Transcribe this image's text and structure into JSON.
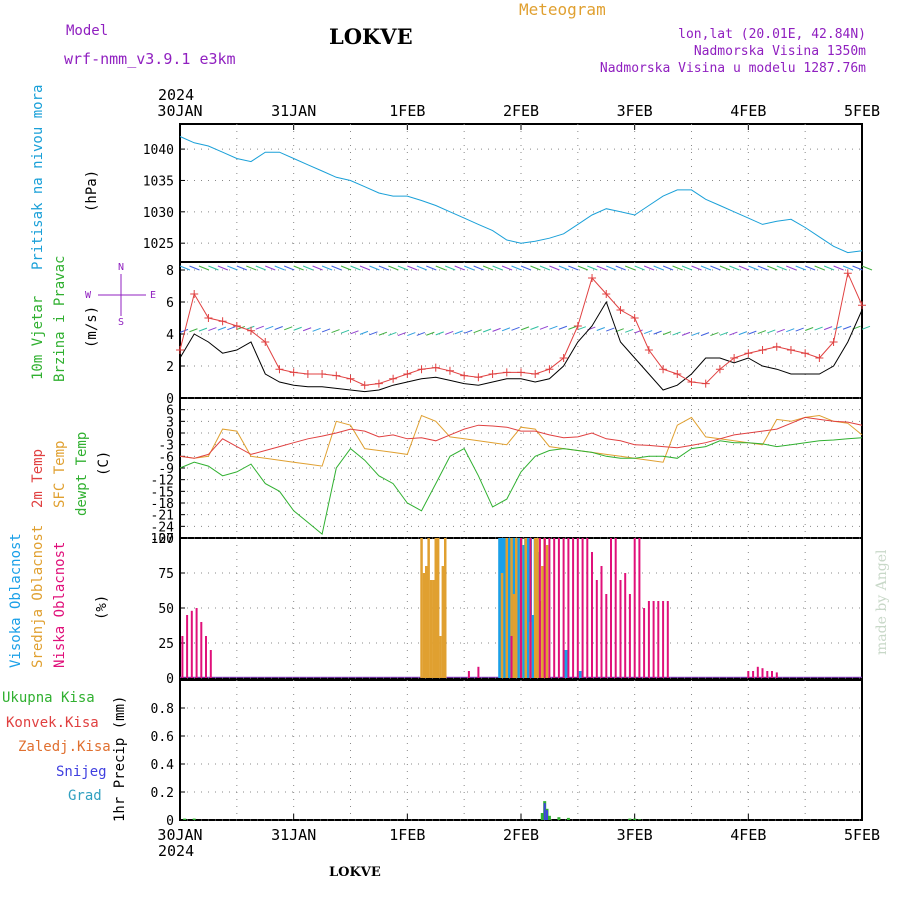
{
  "header": {
    "model_label": "Model",
    "model_name": "wrf-nmm_v3.9.1  e3km",
    "station": "LOKVE",
    "title": "Meteogram",
    "coords": "lon,lat (20.01E, 42.84N)",
    "elevation": "Nadmorska Visina 1350m",
    "model_elevation": "Nadmorska Visina u modelu 1287.76m"
  },
  "footer": {
    "station": "LOKVE",
    "credit": "made by Angel"
  },
  "time_axis": {
    "year": "2024",
    "ticks": [
      "30JAN",
      "31JAN",
      "1FEB",
      "2FEB",
      "3FEB",
      "4FEB",
      "5FEB"
    ],
    "range_hours": [
      0,
      144
    ]
  },
  "colors": {
    "pressure": "#1aa0d8",
    "wind_speed": "#e04040",
    "wind_gust": "#000000",
    "temp_2m": "#e04040",
    "temp_sfc": "#e0a030",
    "temp_dew": "#30b030",
    "cloud_high": "#1aa0e8",
    "cloud_mid": "#e0a030",
    "cloud_low": "#e0107a",
    "precip_total": "#30b030",
    "precip_conv": "#e04040",
    "precip_snow": "#4040e0",
    "legend_purple": "#9020c0"
  },
  "panels": {
    "pressure": {
      "label": "Pritisak na nivou mora",
      "unit": "(hPa)",
      "yticks": [
        "1040",
        "1035",
        "1030",
        "1025"
      ]
    },
    "wind": {
      "label1": "10m Vjetar",
      "label2": "Brzina i Pravac",
      "unit": "(m/s)",
      "yticks": [
        "8",
        "6",
        "4",
        "2",
        "0"
      ],
      "compass": {
        "n": "N",
        "w": "W",
        "e": "E",
        "s": "S"
      }
    },
    "temp": {
      "label1": "2m Temp",
      "label2": "SFC Temp",
      "label3": "dewpt Temp",
      "unit": "(C)",
      "yticks": [
        "6",
        "3",
        "0",
        "-3",
        "-6",
        "-9",
        "-12",
        "-15",
        "-18",
        "-21",
        "-24",
        "-27"
      ]
    },
    "cloud": {
      "label_high": "Visoka Oblacnost",
      "label_mid": "Srednja Oblacnost",
      "label_low": "Niska Oblacnost",
      "unit": "(%)",
      "yticks": [
        "100",
        "75",
        "50",
        "25",
        "0"
      ]
    },
    "precip": {
      "label_total": "Ukupna Kisa",
      "label_conv": "Konvek.Kisa",
      "label_frz": "Zaledj.Kisa",
      "label_snow": "Snijeg",
      "label_grad": "Grad",
      "unit": "1hr Precip (mm)",
      "yticks": [
        "0.8",
        "0.6",
        "0.4",
        "0.2",
        "0"
      ]
    }
  },
  "chart_data": [
    {
      "type": "line",
      "panel": "pressure",
      "ylim": [
        1022,
        1044
      ],
      "series": [
        {
          "name": "Pritisak na nivou mora",
          "x": [
            0,
            3,
            6,
            9,
            12,
            15,
            18,
            21,
            24,
            27,
            30,
            33,
            36,
            39,
            42,
            45,
            48,
            51,
            54,
            57,
            60,
            63,
            66,
            69,
            72,
            75,
            78,
            81,
            84,
            87,
            90,
            93,
            96,
            99,
            102,
            105,
            108,
            111,
            114,
            117,
            120,
            123,
            126,
            129,
            132,
            135,
            138,
            141,
            144
          ],
          "values": [
            1042,
            1041,
            1040.5,
            1039.5,
            1038.5,
            1038,
            1039.5,
            1039.5,
            1038.5,
            1037.5,
            1036.5,
            1035.5,
            1035,
            1034,
            1033,
            1032.5,
            1032.5,
            1031.8,
            1031,
            1030,
            1029,
            1028,
            1027,
            1025.5,
            1025,
            1025.3,
            1025.8,
            1026.5,
            1028,
            1029.5,
            1030.5,
            1030,
            1029.5,
            1031,
            1032.5,
            1033.5,
            1033.5,
            1032,
            1031,
            1030,
            1029,
            1028,
            1028.5,
            1028.8,
            1027.5,
            1026,
            1024.5,
            1023.5,
            1023.8
          ]
        }
      ]
    },
    {
      "type": "line",
      "panel": "wind",
      "ylim": [
        0,
        8.5
      ],
      "series": [
        {
          "name": "Brzina i Pravac",
          "x": [
            0,
            3,
            6,
            9,
            12,
            15,
            18,
            21,
            24,
            27,
            30,
            33,
            36,
            39,
            42,
            45,
            48,
            51,
            54,
            57,
            60,
            63,
            66,
            69,
            72,
            75,
            78,
            81,
            84,
            87,
            90,
            93,
            96,
            99,
            102,
            105,
            108,
            111,
            114,
            117,
            120,
            123,
            126,
            129,
            132,
            135,
            138,
            141,
            144
          ],
          "values": [
            3.0,
            6.5,
            5.0,
            4.8,
            4.5,
            4.2,
            3.5,
            1.8,
            1.6,
            1.5,
            1.5,
            1.4,
            1.2,
            0.8,
            0.9,
            1.2,
            1.5,
            1.8,
            1.9,
            1.7,
            1.4,
            1.3,
            1.5,
            1.6,
            1.6,
            1.5,
            1.8,
            2.5,
            4.5,
            7.5,
            6.5,
            5.5,
            5.0,
            3.0,
            1.8,
            1.5,
            1.0,
            0.9,
            1.8,
            2.5,
            2.8,
            3.0,
            3.2,
            3.0,
            2.8,
            2.5,
            3.5,
            7.8,
            5.8
          ]
        },
        {
          "name": "",
          "x": [
            0,
            3,
            6,
            9,
            12,
            15,
            18,
            21,
            24,
            27,
            30,
            33,
            36,
            39,
            42,
            45,
            48,
            51,
            54,
            57,
            60,
            63,
            66,
            69,
            72,
            75,
            78,
            81,
            84,
            87,
            90,
            93,
            96,
            99,
            102,
            105,
            108,
            111,
            114,
            117,
            120,
            123,
            126,
            129,
            132,
            135,
            138,
            141,
            144
          ],
          "values": [
            2.5,
            4.0,
            3.5,
            2.8,
            3.0,
            3.5,
            1.5,
            1.0,
            0.8,
            0.7,
            0.7,
            0.6,
            0.5,
            0.4,
            0.5,
            0.8,
            1.0,
            1.2,
            1.3,
            1.1,
            0.9,
            0.8,
            1.0,
            1.2,
            1.2,
            1.0,
            1.2,
            2.0,
            3.5,
            4.5,
            6.0,
            3.5,
            2.5,
            1.5,
            0.5,
            0.8,
            1.5,
            2.5,
            2.5,
            2.2,
            2.5,
            2.0,
            1.8,
            1.5,
            1.5,
            1.5,
            2.0,
            3.5,
            5.5
          ]
        }
      ]
    },
    {
      "type": "line",
      "panel": "temp",
      "ylim": [
        -27,
        9
      ],
      "series": [
        {
          "name": "2m Temp",
          "x": [
            0,
            3,
            6,
            9,
            12,
            15,
            18,
            21,
            24,
            27,
            30,
            33,
            36,
            39,
            42,
            45,
            48,
            51,
            54,
            57,
            60,
            63,
            66,
            69,
            72,
            75,
            78,
            81,
            84,
            87,
            90,
            93,
            96,
            99,
            102,
            105,
            108,
            111,
            114,
            117,
            120,
            123,
            126,
            129,
            132,
            135,
            138,
            141,
            144
          ],
          "values": [
            -6,
            -6.5,
            -5.5,
            -1.5,
            -3.5,
            -5.5,
            -4.5,
            -3.5,
            -2.5,
            -1.5,
            -0.8,
            0,
            1,
            0.5,
            -1,
            -0.5,
            -1.5,
            -1.2,
            -2,
            -0.5,
            1,
            2,
            1.8,
            1.5,
            0.5,
            0.5,
            -0.5,
            -1.2,
            -1,
            0,
            -1.5,
            -2,
            -3,
            -3.2,
            -3.5,
            -3.8,
            -3.2,
            -2.5,
            -1.5,
            -0.5,
            0,
            0.5,
            1,
            2.5,
            4,
            3.5,
            3,
            2.8,
            2
          ]
        },
        {
          "name": "SFC Temp",
          "x": [
            0,
            3,
            6,
            9,
            12,
            15,
            18,
            21,
            24,
            27,
            30,
            33,
            36,
            39,
            42,
            45,
            48,
            51,
            54,
            57,
            60,
            63,
            66,
            69,
            72,
            75,
            78,
            81,
            84,
            87,
            90,
            93,
            96,
            99,
            102,
            105,
            108,
            111,
            114,
            117,
            120,
            123,
            126,
            129,
            132,
            135,
            138,
            141,
            144
          ],
          "values": [
            -6,
            -6.5,
            -6,
            1,
            0.5,
            -6,
            -6.5,
            -7,
            -7.5,
            -8,
            -8.5,
            3,
            2,
            -4,
            -4.5,
            -5,
            -5.5,
            4.5,
            3,
            -1,
            -1.5,
            -2,
            -2.5,
            -3,
            1.5,
            1,
            -3.5,
            -4,
            -4.5,
            -5,
            -5.5,
            -6,
            -6.5,
            -7,
            -7.5,
            2,
            4,
            -1,
            -1.5,
            -2,
            -2.5,
            -3,
            3.5,
            3,
            4,
            4.5,
            3,
            2.5,
            -0.5
          ]
        },
        {
          "name": "dewpt Temp",
          "x": [
            0,
            3,
            6,
            9,
            12,
            15,
            18,
            21,
            24,
            27,
            30,
            33,
            36,
            39,
            42,
            45,
            48,
            51,
            54,
            57,
            60,
            63,
            66,
            69,
            72,
            75,
            78,
            81,
            84,
            87,
            90,
            93,
            96,
            99,
            102,
            105,
            108,
            111,
            114,
            117,
            120,
            123,
            126,
            129,
            132,
            135,
            138,
            141,
            144
          ],
          "values": [
            -9,
            -7.5,
            -8.5,
            -11,
            -10,
            -8,
            -13,
            -15,
            -20,
            -23,
            -26,
            -9,
            -4,
            -7,
            -11,
            -13,
            -18,
            -20,
            -13,
            -6,
            -4,
            -11,
            -19,
            -17,
            -10,
            -6,
            -4.5,
            -4,
            -4.5,
            -5,
            -6,
            -6.5,
            -6.5,
            -6,
            -6,
            -6.5,
            -4,
            -3.5,
            -2,
            -2.5,
            -2.5,
            -2.8,
            -3.5,
            -3,
            -2.5,
            -2,
            -1.8,
            -1.5,
            -1.2
          ]
        }
      ]
    },
    {
      "type": "bar",
      "panel": "cloud",
      "ylim": [
        0,
        100
      ],
      "series": [
        {
          "name": "Visoka Oblacnost",
          "x": [
            67.5,
            68,
            68.5,
            69,
            69.5,
            70,
            70.5,
            71,
            71.5,
            72,
            72.5,
            73,
            73.5,
            74,
            74.5,
            75,
            75.5,
            81.5,
            84.5
          ],
          "values": [
            100,
            100,
            100,
            100,
            100,
            100,
            100,
            100,
            100,
            100,
            95,
            100,
            100,
            100,
            45,
            100,
            90,
            20,
            5
          ]
        },
        {
          "name": "Srednja Oblacnost",
          "x": [
            51,
            51.5,
            52,
            52.5,
            53,
            53.5,
            54,
            54.5,
            55,
            55.5,
            56,
            68,
            69,
            70,
            70.5,
            71,
            72,
            73,
            74,
            75,
            75.5,
            76,
            76.5,
            77,
            77.5
          ],
          "values": [
            100,
            75,
            80,
            100,
            70,
            70,
            100,
            100,
            30,
            80,
            100,
            75,
            100,
            100,
            60,
            100,
            100,
            100,
            40,
            100,
            100,
            55,
            80,
            100,
            95
          ]
        },
        {
          "name": "Niska Oblacnost",
          "x": [
            0.5,
            1.5,
            2.5,
            3.5,
            4.5,
            5.5,
            6.5,
            61,
            63,
            70,
            72,
            74,
            76,
            77,
            78,
            79,
            80,
            81,
            82,
            83,
            84,
            85,
            86,
            87,
            88,
            89,
            90,
            91,
            92,
            93,
            94,
            95,
            96,
            97,
            98,
            99,
            100,
            101,
            102,
            103,
            120,
            121,
            122,
            123,
            124,
            125,
            126
          ],
          "values": [
            30,
            45,
            48,
            50,
            40,
            30,
            20,
            5,
            8,
            30,
            100,
            100,
            100,
            100,
            100,
            100,
            100,
            100,
            100,
            100,
            100,
            100,
            100,
            90,
            70,
            80,
            60,
            100,
            100,
            70,
            75,
            60,
            100,
            100,
            50,
            55,
            55,
            55,
            55,
            55,
            5,
            5,
            8,
            7,
            5,
            5,
            4
          ]
        }
      ]
    },
    {
      "type": "bar",
      "panel": "precip",
      "ylim": [
        0,
        1.0
      ],
      "series": [
        {
          "name": "Ukupna Kisa",
          "x": [
            1,
            3,
            76.5,
            77,
            77.5,
            78,
            80,
            82,
            95,
            96,
            97
          ],
          "values": [
            0.01,
            0.01,
            0.05,
            0.135,
            0.08,
            0.03,
            0.02,
            0.015,
            0.01,
            0.01,
            0.005
          ]
        },
        {
          "name": "Snijeg",
          "x": [
            77,
            77.5
          ],
          "values": [
            0.12,
            0.07
          ]
        }
      ]
    }
  ]
}
